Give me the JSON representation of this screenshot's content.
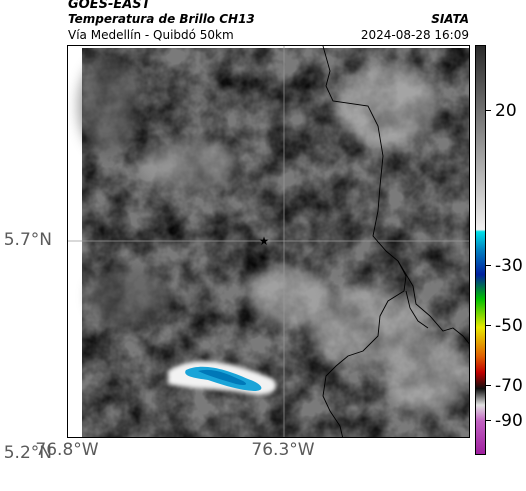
{
  "header": {
    "satellite": "GOES-EAST",
    "product": "Temperatura de Brillo CH13",
    "area": "Vía Medellín - Quibdó 50km",
    "source": "SIATA",
    "datetime": "2024-08-28 16:09"
  },
  "axes": {
    "lat_labels": [
      "5.7°N",
      "5.2°N"
    ],
    "lon_labels": [
      "76.8°W",
      "76.3°W"
    ]
  },
  "colorbar": {
    "labels": [
      "20",
      "-30",
      "-50",
      "-70",
      "-90"
    ],
    "colors": {
      "cyan": "#00c8d8",
      "blue": "#0020a0",
      "green": "#00c000",
      "yellow": "#e8e800",
      "red": "#e02000",
      "black": "#000000",
      "magenta": "#c040c0"
    }
  },
  "map": {
    "marker_icon": "star-icon",
    "cloud_color": "#1aa4d8"
  }
}
